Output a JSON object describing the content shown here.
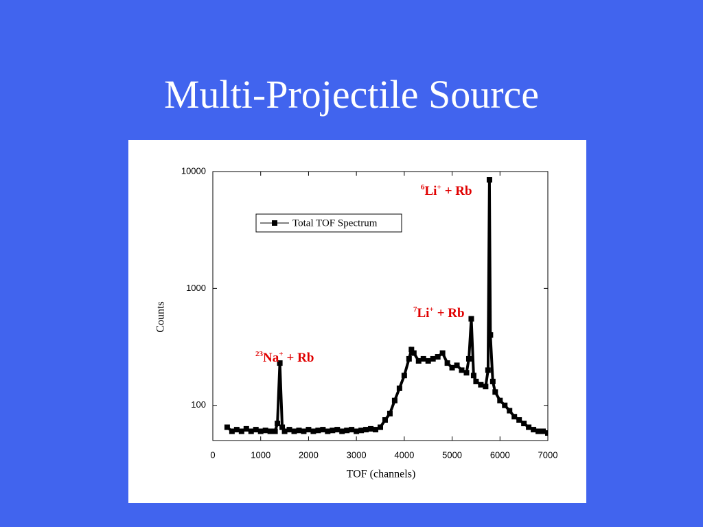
{
  "title": "Multi-Projectile Source",
  "chart_data": {
    "type": "line",
    "xlabel": "TOF (channels)",
    "ylabel": "Counts",
    "log_y": true,
    "xlim": [
      0,
      7000
    ],
    "xticks": [
      0,
      1000,
      2000,
      3000,
      4000,
      5000,
      6000,
      7000
    ],
    "ylim": [
      50,
      10000
    ],
    "yticks": [
      100,
      1000,
      10000
    ],
    "legend_position": "upper-left",
    "series": [
      {
        "name": "Total TOF Spectrum",
        "color": "#000000",
        "x": [
          300,
          400,
          500,
          600,
          700,
          800,
          900,
          1000,
          1100,
          1200,
          1300,
          1350,
          1400,
          1450,
          1500,
          1600,
          1700,
          1800,
          1900,
          2000,
          2100,
          2200,
          2300,
          2400,
          2500,
          2600,
          2700,
          2800,
          2900,
          3000,
          3100,
          3200,
          3300,
          3400,
          3500,
          3600,
          3700,
          3800,
          3900,
          4000,
          4100,
          4150,
          4200,
          4300,
          4400,
          4500,
          4600,
          4700,
          4800,
          4900,
          5000,
          5100,
          5200,
          5300,
          5350,
          5400,
          5450,
          5500,
          5600,
          5700,
          5750,
          5780,
          5800,
          5850,
          5900,
          6000,
          6100,
          6200,
          6300,
          6400,
          6500,
          6600,
          6700,
          6800,
          6900,
          7000
        ],
        "values": [
          65,
          60,
          62,
          60,
          63,
          60,
          62,
          60,
          61,
          60,
          60,
          70,
          230,
          65,
          60,
          62,
          60,
          61,
          60,
          62,
          60,
          61,
          62,
          60,
          61,
          62,
          60,
          61,
          62,
          60,
          61,
          62,
          63,
          62,
          65,
          75,
          85,
          110,
          140,
          180,
          250,
          300,
          280,
          240,
          250,
          240,
          250,
          260,
          280,
          230,
          210,
          220,
          200,
          190,
          250,
          550,
          180,
          160,
          150,
          145,
          200,
          8500,
          400,
          160,
          130,
          110,
          100,
          90,
          80,
          75,
          70,
          65,
          62,
          60,
          60,
          58
        ]
      }
    ],
    "annotations": [
      {
        "mass": "6",
        "ion": "Li",
        "charge": "+",
        "text": "+ Rb"
      },
      {
        "mass": "7",
        "ion": "Li",
        "charge": "+",
        "text": "+ Rb"
      },
      {
        "mass": "23",
        "ion": "Na",
        "charge": "+",
        "text": "+ Rb"
      }
    ]
  }
}
